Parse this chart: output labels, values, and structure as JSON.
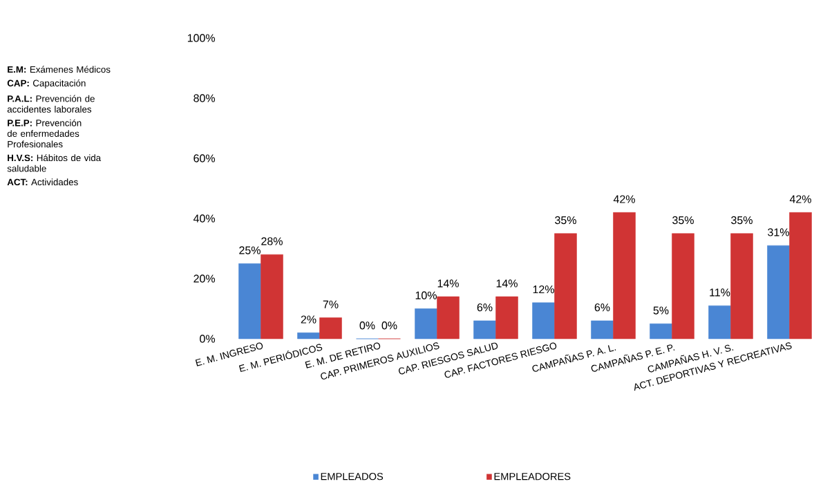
{
  "chart_data": {
    "type": "bar",
    "categories": [
      "E. M. INGRESO",
      "E. M. PERIÓDICOS",
      "E. M. DE RETIRO",
      "CAP. PRIMEROS AUXILIOS",
      "CAP. RIESGOS SALUD",
      "CAP. FACTORES RIESGO",
      "CAMPAÑAS P. A. L.",
      "CAMPAÑAS P. E. P.",
      "CAMPAÑAS H. V. S.",
      "ACT. DEPORTIVAS Y RECREATIVAS"
    ],
    "series": [
      {
        "name": "EMPLEADOS",
        "color": "#4a86d4",
        "values": [
          25,
          2,
          0,
          10,
          6,
          12,
          6,
          5,
          11,
          31
        ],
        "value_labels": [
          "25%",
          "2%",
          "0%",
          "10%",
          "6%",
          "12%",
          "6%",
          "5%",
          "11%",
          "31%"
        ]
      },
      {
        "name": "EMPLEADORES",
        "color": "#d03434",
        "values": [
          28,
          7,
          0,
          14,
          14,
          35,
          42,
          35,
          35,
          42
        ],
        "value_labels": [
          "28%",
          "7%",
          "0%",
          "14%",
          "14%",
          "35%",
          "42%",
          "35%",
          "35%",
          "42%"
        ]
      }
    ],
    "ylim": [
      0,
      100
    ],
    "yticks": [
      {
        "value": 0,
        "label": "0%"
      },
      {
        "value": 20,
        "label": "20%"
      },
      {
        "value": 40,
        "label": "40%"
      },
      {
        "value": 60,
        "label": "60%"
      },
      {
        "value": 80,
        "label": "80%"
      },
      {
        "value": 100,
        "label": "100%"
      }
    ],
    "grid": false,
    "legend": "bottom",
    "annotations": [
      "**E.M:** Exámenes Médicos",
      "**CAP:** Capacitación",
      "**P.A.L:** Prevención de accidentes laborales",
      "**P.E.P:** Prevención de enfermedades Profesionales",
      "**H.V.S:** Hábitos de vida saludable",
      "**ACT:** Actividades"
    ]
  }
}
